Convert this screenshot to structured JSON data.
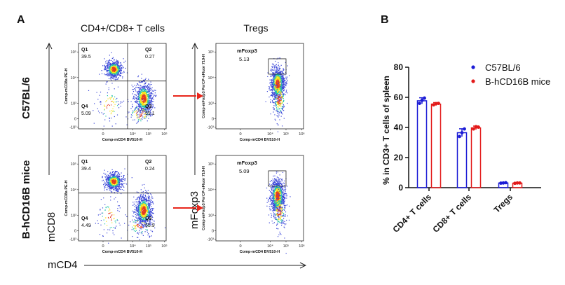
{
  "panel_a": {
    "letter": "A",
    "col_titles": [
      "CD4+/CD8+ T cells",
      "Tregs"
    ],
    "row_labels": [
      "C57BL/6",
      "B-hCD16B mice"
    ],
    "y_axis_labels": [
      "mCD8",
      "mFoxp3"
    ],
    "x_axis_label": "mCD4",
    "colors": {
      "arrow": "#e8261b",
      "text": "#111111",
      "dot_low": "#3a46d8",
      "dot_mid": "#21c4a8",
      "dot_high": "#f5e21a",
      "dot_peak": "#e63a1e"
    },
    "plots": [
      {
        "id": "c57-cd4cd8",
        "y_axis_title": "Comp-mCD8a PE-H",
        "x_axis_title": "Comp-mCD4 BV510-H",
        "y_ticks": [
          "10⁵",
          "10⁴",
          "10³",
          "0",
          "-10³"
        ],
        "x_ticks": [
          "0",
          "10⁴",
          "10⁵",
          "10⁶"
        ],
        "quadrants": [
          {
            "name": "Q1",
            "value": "39.5"
          },
          {
            "name": "Q2",
            "value": "0.27"
          },
          {
            "name": "Q4",
            "value": "5.09"
          },
          {
            "name": "Q3",
            "value": "55.1"
          }
        ]
      },
      {
        "id": "c57-tregs",
        "y_axis_title": "Comp-mFoxp3 PerCP-eFluor 710-H",
        "x_axis_title": "Comp-mCD4 BV510-H",
        "y_ticks": [
          "10⁵",
          "10⁴",
          "10³",
          "0",
          "-10³"
        ],
        "x_ticks": [
          "0",
          "10⁴",
          "10⁵",
          "10⁶"
        ],
        "gate": {
          "name": "mFoxp3",
          "value": "5.13"
        }
      },
      {
        "id": "hcd16b-cd4cd8",
        "y_axis_title": "Comp-mCD8a PE-H",
        "x_axis_title": "Comp-mCD4 BV510-H",
        "y_ticks": [
          "10⁵",
          "10⁴",
          "10³",
          "0",
          "-10³"
        ],
        "x_ticks": [
          "0",
          "10⁴",
          "10⁵",
          "10⁶"
        ],
        "quadrants": [
          {
            "name": "Q1",
            "value": "39.4"
          },
          {
            "name": "Q2",
            "value": "0.24"
          },
          {
            "name": "Q4",
            "value": "4.49"
          },
          {
            "name": "Q3",
            "value": "55.9"
          }
        ]
      },
      {
        "id": "hcd16b-tregs",
        "y_axis_title": "Comp-mFoxp3 PerCP-eFluor 710-H",
        "x_axis_title": "Comp-mCD4 BV510-H",
        "y_ticks": [
          "10⁵",
          "10⁴",
          "10³",
          "0",
          "-10³"
        ],
        "x_ticks": [
          "0",
          "10⁴",
          "10⁵",
          "10⁶"
        ],
        "gate": {
          "name": "mFoxp3",
          "value": "5.09"
        }
      }
    ]
  },
  "chart_data": {
    "type": "bar",
    "letter": "B",
    "categories": [
      "CD4+ T cells",
      "CD8+ T cells",
      "Tregs"
    ],
    "ylabel": "% in CD3+ T cells of spleen",
    "xlabel": "",
    "ylim": [
      0,
      80
    ],
    "yticks": [
      0,
      20,
      40,
      60,
      80
    ],
    "grid": false,
    "legend": "top-right",
    "series": [
      {
        "name": "C57BL/6",
        "color": "#1c1cd6",
        "values": [
          57.7,
          36.5,
          3.1
        ],
        "errors": [
          2.0,
          2.6,
          0.3
        ],
        "points": [
          [
            56,
            58,
            59.5
          ],
          [
            34,
            36.5,
            39
          ],
          [
            3,
            3.1,
            3.3
          ]
        ]
      },
      {
        "name": "B-hCD16B mice",
        "color": "#e31a1a",
        "values": [
          55.5,
          39.7,
          3.0
        ],
        "errors": [
          1.0,
          1.2,
          0.3
        ],
        "points": [
          [
            55,
            55.8,
            56
          ],
          [
            39,
            40.5,
            40.2
          ],
          [
            2.9,
            3.1,
            3.1
          ]
        ]
      }
    ]
  }
}
